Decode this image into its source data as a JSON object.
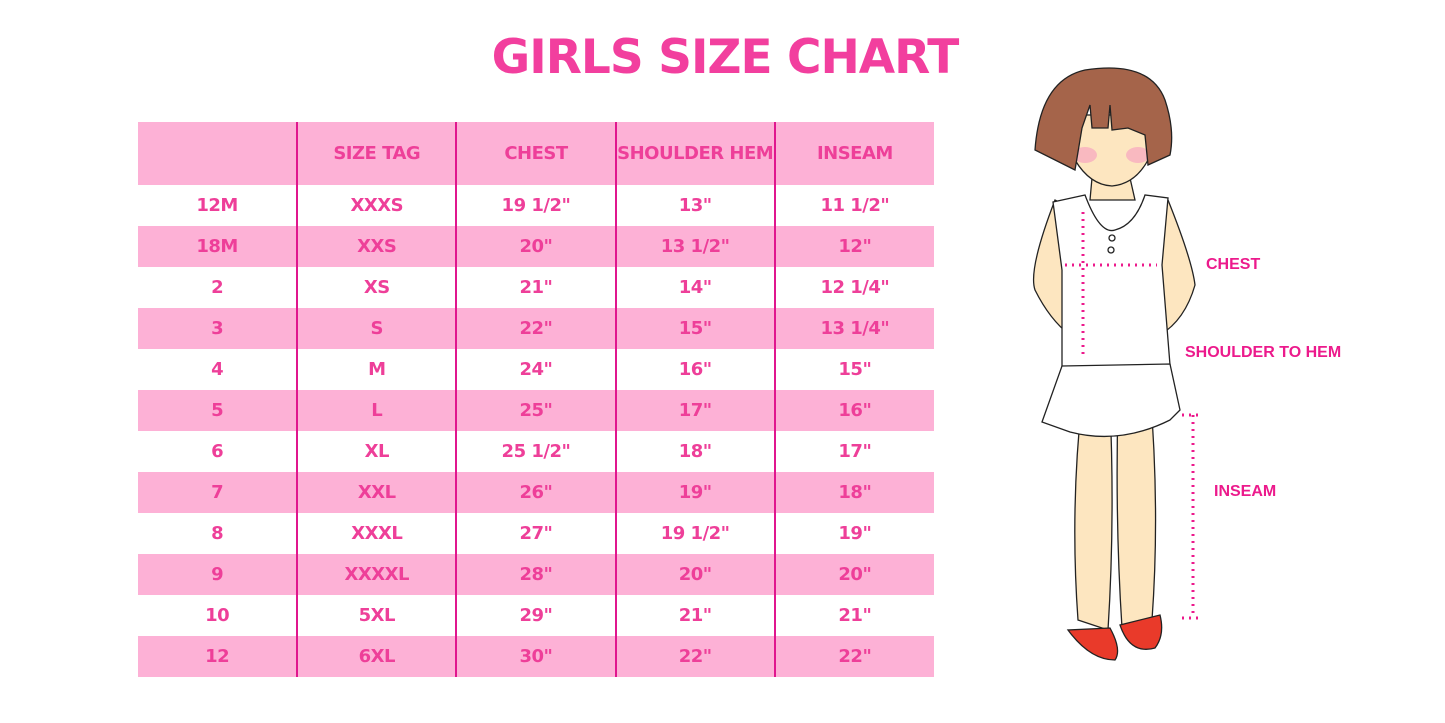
{
  "title": "GIRLS SIZE CHART",
  "table": {
    "headers": [
      "",
      "SIZE TAG",
      "CHEST",
      "SHOULDER HEM",
      "INSEAM"
    ],
    "rows": [
      [
        "12M",
        "XXXS",
        "19 1/2\"",
        "13\"",
        "11 1/2\""
      ],
      [
        "18M",
        "XXS",
        "20\"",
        "13 1/2\"",
        "12\""
      ],
      [
        "2",
        "XS",
        "21\"",
        "14\"",
        "12 1/4\""
      ],
      [
        "3",
        "S",
        "22\"",
        "15\"",
        "13 1/4\""
      ],
      [
        "4",
        "M",
        "24\"",
        "16\"",
        "15\""
      ],
      [
        "5",
        "L",
        "25\"",
        "17\"",
        "16\""
      ],
      [
        "6",
        "XL",
        "25 1/2\"",
        "18\"",
        "17\""
      ],
      [
        "7",
        "XXL",
        "26\"",
        "19\"",
        "18\""
      ],
      [
        "8",
        "XXXL",
        "27\"",
        "19 1/2\"",
        "19\""
      ],
      [
        "9",
        "XXXXL",
        "28\"",
        "20\"",
        "20\""
      ],
      [
        "10",
        "5XL",
        "29\"",
        "21\"",
        "21\""
      ],
      [
        "12",
        "6XL",
        "30\"",
        "22\"",
        "22\""
      ]
    ]
  },
  "illustration": {
    "labels": {
      "chest": "CHEST",
      "shoulder": "SHOULDER TO HEM",
      "inseam": "INSEAM"
    }
  },
  "colors": {
    "accent": "#f23f9e",
    "row_pink": "#fdb1d6",
    "divider": "#e0168e"
  }
}
